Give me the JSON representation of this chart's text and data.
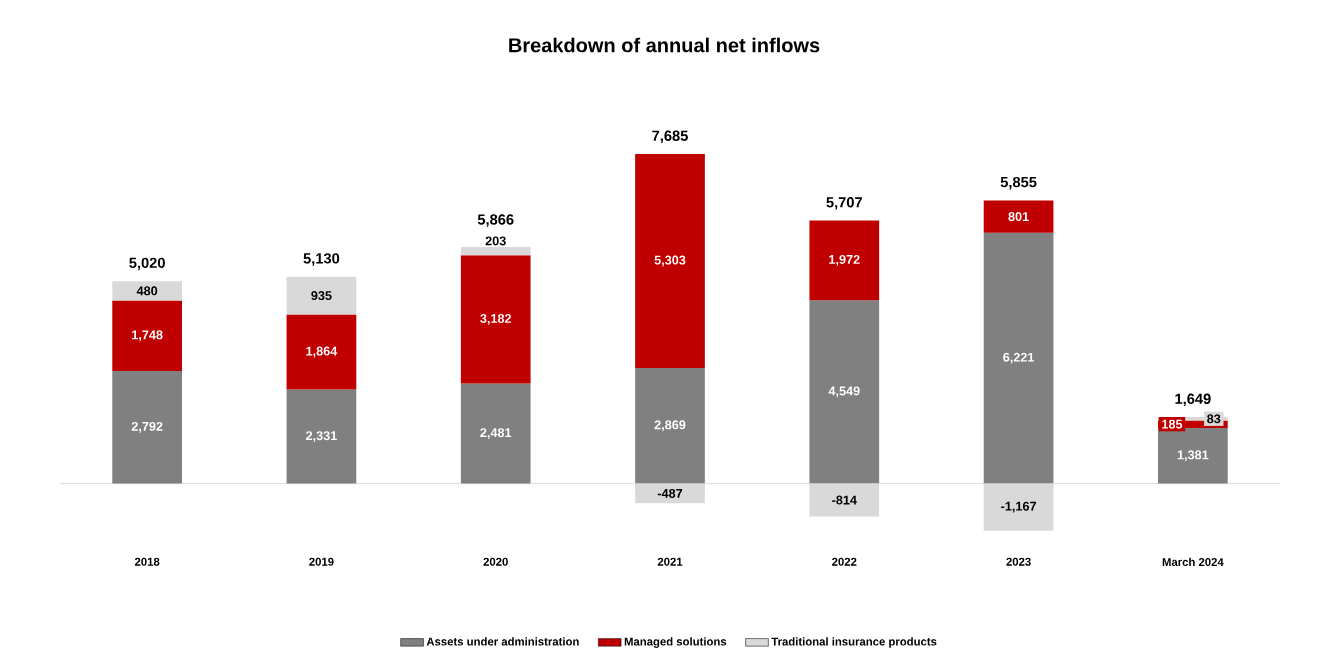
{
  "chart_data": {
    "type": "bar",
    "title": "Breakdown of annual net inflows",
    "stacked": true,
    "legend": "bottom",
    "categories": [
      "2018",
      "2019",
      "2020",
      "2021",
      "2022",
      "2023",
      "March 2024"
    ],
    "series": [
      {
        "name": "Assets under administration",
        "color": "#808080",
        "values": [
          2792,
          2331,
          2481,
          2869,
          4549,
          6221,
          1381
        ],
        "value_labels": [
          "2,792",
          "2,331",
          "2,481",
          "2,869",
          "4,549",
          "6,221",
          "1,381"
        ]
      },
      {
        "name": "Managed solutions",
        "color": "#c00000",
        "values": [
          1748,
          1864,
          3182,
          5303,
          1972,
          801,
          185
        ],
        "value_labels": [
          "1,748",
          "1,864",
          "3,182",
          "5,303",
          "1,972",
          "801",
          "185"
        ]
      },
      {
        "name": "Traditional insurance products",
        "color": "#d9d9d9",
        "values": [
          480,
          935,
          203,
          -487,
          -814,
          -1167,
          83
        ],
        "value_labels": [
          "480",
          "935",
          "203",
          "-487",
          "-814",
          "-1,167",
          "83"
        ]
      }
    ],
    "totals": [
      "5,020",
      "5,130",
      "5,866",
      "7,685",
      "5,707",
      "5,855",
      "1,649"
    ]
  }
}
